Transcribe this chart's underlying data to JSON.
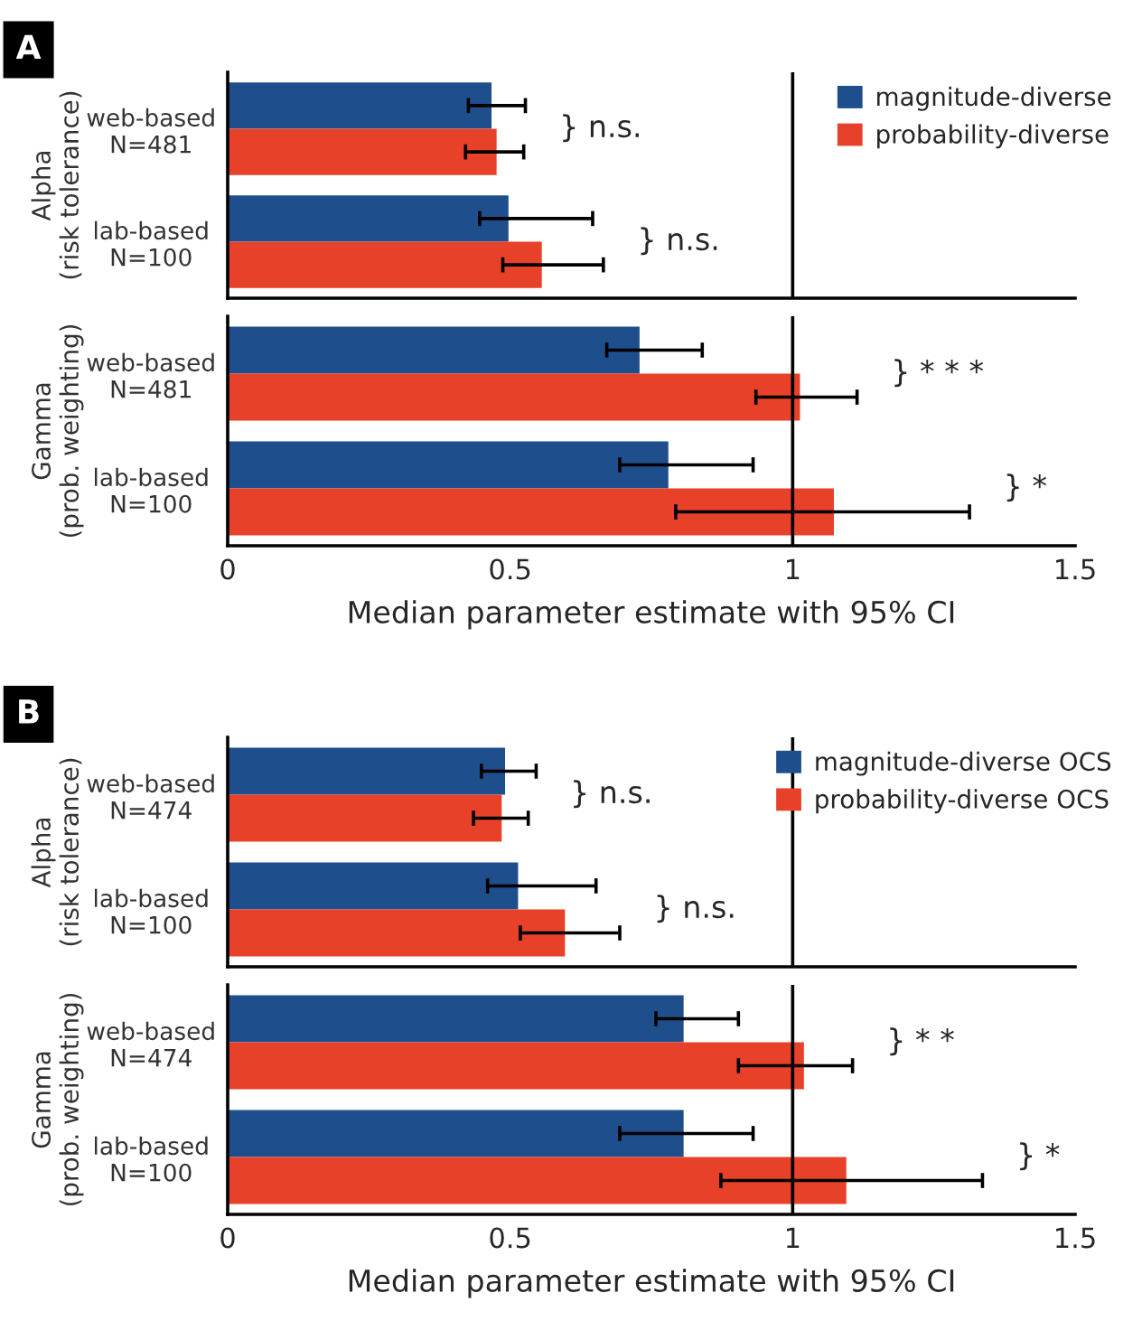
{
  "chart_data": [
    {
      "type": "bar",
      "orientation": "horizontal",
      "title": "A",
      "ylabel": "Alpha\n(risk tolerance)",
      "categories": [
        "web-based\nN=481",
        "lab-based\nN=100"
      ],
      "xlim": [
        0,
        1.5
      ],
      "xticks": [
        0,
        0.5,
        1,
        1.5
      ],
      "tick_labels": "y",
      "legend": "top right",
      "grid": false,
      "ref_lines": [
        {
          "axis": "x",
          "value": 1
        }
      ],
      "annotations": [
        "} n.s.",
        "} n.s."
      ],
      "series": [
        {
          "name": "magnitude-diverse",
          "color": "#1f4e8c",
          "values": [
            0.467,
            0.497
          ],
          "errors": [
            [
              0.426,
              0.527
            ],
            [
              0.446,
              0.646
            ]
          ]
        },
        {
          "name": "probability-diverse",
          "color": "#e8412a",
          "values": [
            0.476,
            0.556
          ],
          "errors": [
            [
              0.421,
              0.524
            ],
            [
              0.487,
              0.665
            ]
          ]
        }
      ]
    },
    {
      "type": "bar",
      "orientation": "horizontal",
      "ylabel": "Gamma\n(prob. weighting)",
      "xlabel": "Median parameter estimate with 95% CI",
      "categories": [
        "web-based\nN=481",
        "lab-based\nN=100"
      ],
      "xlim": [
        0,
        1.5
      ],
      "xticks": [
        0,
        0.5,
        1,
        1.5
      ],
      "grid": false,
      "ref_lines": [
        {
          "axis": "x",
          "value": 1
        }
      ],
      "annotations": [
        "} * * *",
        "} *"
      ],
      "series": [
        {
          "color": "#1f4e8c",
          "values": [
            0.729,
            0.78
          ],
          "errors": [
            [
              0.671,
              0.84
            ],
            [
              0.694,
              0.93
            ]
          ]
        },
        {
          "color": "#e8412a",
          "values": [
            1.013,
            1.073
          ],
          "errors": [
            [
              0.935,
              1.114
            ],
            [
              0.793,
              1.313
            ]
          ]
        }
      ]
    },
    {
      "type": "bar",
      "orientation": "horizontal",
      "title": "B",
      "ylabel": "Alpha\n(risk tolerance)",
      "categories": [
        "web-based\nN=474",
        "lab-based\nN=100"
      ],
      "xlim": [
        0,
        1.5
      ],
      "xticks": [
        0,
        0.5,
        1,
        1.5
      ],
      "tick_labels": "y",
      "legend": "top right",
      "grid": false,
      "ref_lines": [
        {
          "axis": "x",
          "value": 1
        }
      ],
      "annotations": [
        "} n.s.",
        "} n.s."
      ],
      "series": [
        {
          "name": "magnitude-diverse OCS",
          "color": "#1f4e8c",
          "values": [
            0.491,
            0.514
          ],
          "errors": [
            [
              0.449,
              0.546
            ],
            [
              0.46,
              0.652
            ]
          ]
        },
        {
          "name": "probability-diverse OCS",
          "color": "#e8412a",
          "values": [
            0.485,
            0.597
          ],
          "errors": [
            [
              0.435,
              0.532
            ],
            [
              0.518,
              0.694
            ]
          ]
        }
      ]
    },
    {
      "type": "bar",
      "orientation": "horizontal",
      "ylabel": "Gamma\n(prob. weighting)",
      "xlabel": "Median parameter estimate with 95% CI",
      "categories": [
        "web-based\nN=474",
        "lab-based\nN=100"
      ],
      "xlim": [
        0,
        1.5
      ],
      "xticks": [
        0,
        0.5,
        1,
        1.5
      ],
      "grid": false,
      "ref_lines": [
        {
          "axis": "x",
          "value": 1
        }
      ],
      "annotations": [
        "} * *",
        "} *"
      ],
      "series": [
        {
          "color": "#1f4e8c",
          "values": [
            0.807,
            0.807
          ],
          "errors": [
            [
              0.758,
              0.904
            ],
            [
              0.694,
              0.93
            ]
          ]
        },
        {
          "color": "#e8412a",
          "values": [
            1.02,
            1.095
          ],
          "errors": [
            [
              0.904,
              1.106
            ],
            [
              0.873,
              1.336
            ]
          ]
        }
      ]
    }
  ]
}
